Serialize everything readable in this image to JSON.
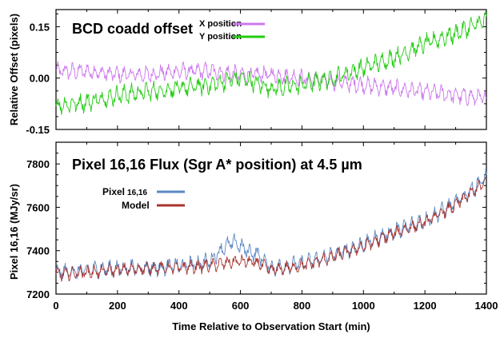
{
  "chart_data": [
    {
      "type": "line",
      "title": "BCD coadd offset",
      "xlabel": "",
      "ylabel": "Relative Offset (pixels)",
      "xlim": [
        0,
        1400
      ],
      "ylim": [
        -0.15,
        0.2
      ],
      "yticks": [
        -0.15,
        0.0,
        0.15
      ],
      "ytick_labels": [
        "-0.15",
        "0.00",
        "0.15"
      ],
      "legend_position": "top-center",
      "series": [
        {
          "name": "X position",
          "color": "#cc77ee",
          "x": [
            0,
            100,
            200,
            300,
            400,
            500,
            600,
            700,
            800,
            900,
            1000,
            1100,
            1200,
            1300,
            1400
          ],
          "values": [
            0.02,
            0.02,
            0.01,
            0.01,
            0.02,
            0.02,
            0.01,
            0.01,
            0.0,
            -0.01,
            -0.02,
            -0.03,
            -0.04,
            -0.05,
            -0.06
          ]
        },
        {
          "name": "Y position",
          "color": "#22cc11",
          "x": [
            0,
            100,
            200,
            300,
            400,
            500,
            600,
            700,
            800,
            900,
            1000,
            1100,
            1200,
            1300,
            1400
          ],
          "values": [
            -0.08,
            -0.07,
            -0.05,
            -0.04,
            -0.03,
            -0.02,
            0.0,
            -0.03,
            -0.02,
            0.0,
            0.03,
            0.06,
            0.1,
            0.13,
            0.17
          ]
        }
      ]
    },
    {
      "type": "line",
      "title": "Pixel 16,16 Flux (Sgr A* position) at 4.5 µm",
      "xlabel": "Time Relative to Observation Start (min)",
      "ylabel": "Pixel 16,16  (MJy/sr)",
      "xlim": [
        0,
        1400
      ],
      "xticks": [
        0,
        200,
        400,
        600,
        800,
        1000,
        1200,
        1400
      ],
      "xtick_labels": [
        "0",
        "200",
        "400",
        "600",
        "800",
        "1000",
        "1200",
        "1400"
      ],
      "ylim": [
        7200,
        7900
      ],
      "yticks": [
        7200,
        7400,
        7600,
        7800
      ],
      "ytick_labels": [
        "7200",
        "7400",
        "7600",
        "7800"
      ],
      "legend_position": "top-left",
      "series": [
        {
          "name": "Pixel",
          "name_suffix": "16,16",
          "color": "#5b87c3",
          "x": [
            0,
            100,
            200,
            300,
            400,
            500,
            540,
            580,
            620,
            660,
            700,
            800,
            900,
            1000,
            1100,
            1200,
            1300,
            1400
          ],
          "values": [
            7300,
            7310,
            7320,
            7320,
            7330,
            7350,
            7410,
            7440,
            7400,
            7380,
            7320,
            7340,
            7380,
            7430,
            7490,
            7540,
            7620,
            7740
          ]
        },
        {
          "name": "Model",
          "color": "#a8332f",
          "x": [
            0,
            100,
            200,
            300,
            400,
            500,
            540,
            580,
            620,
            660,
            700,
            800,
            900,
            1000,
            1100,
            1200,
            1300,
            1400
          ],
          "values": [
            7290,
            7300,
            7310,
            7320,
            7320,
            7330,
            7340,
            7350,
            7350,
            7340,
            7310,
            7330,
            7370,
            7420,
            7480,
            7530,
            7610,
            7720
          ]
        }
      ]
    }
  ]
}
